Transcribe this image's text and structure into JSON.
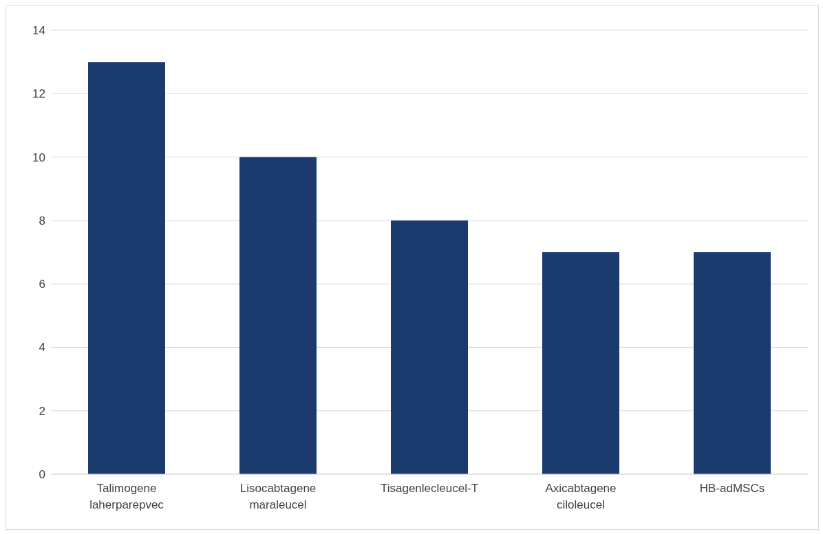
{
  "chart_data": {
    "type": "bar",
    "categories": [
      "Talimogene laherparepvec",
      "Lisocabtagene maraleucel",
      "Tisagenlecleucel-T",
      "Axicabtagene ciloleucel",
      "HB-adMSCs"
    ],
    "values": [
      13,
      10,
      8,
      7,
      7
    ],
    "color": "#1b3a6e",
    "ylim": [
      0,
      14
    ],
    "yticks": [
      0,
      2,
      4,
      6,
      8,
      10,
      12,
      14
    ],
    "grid": "y"
  }
}
